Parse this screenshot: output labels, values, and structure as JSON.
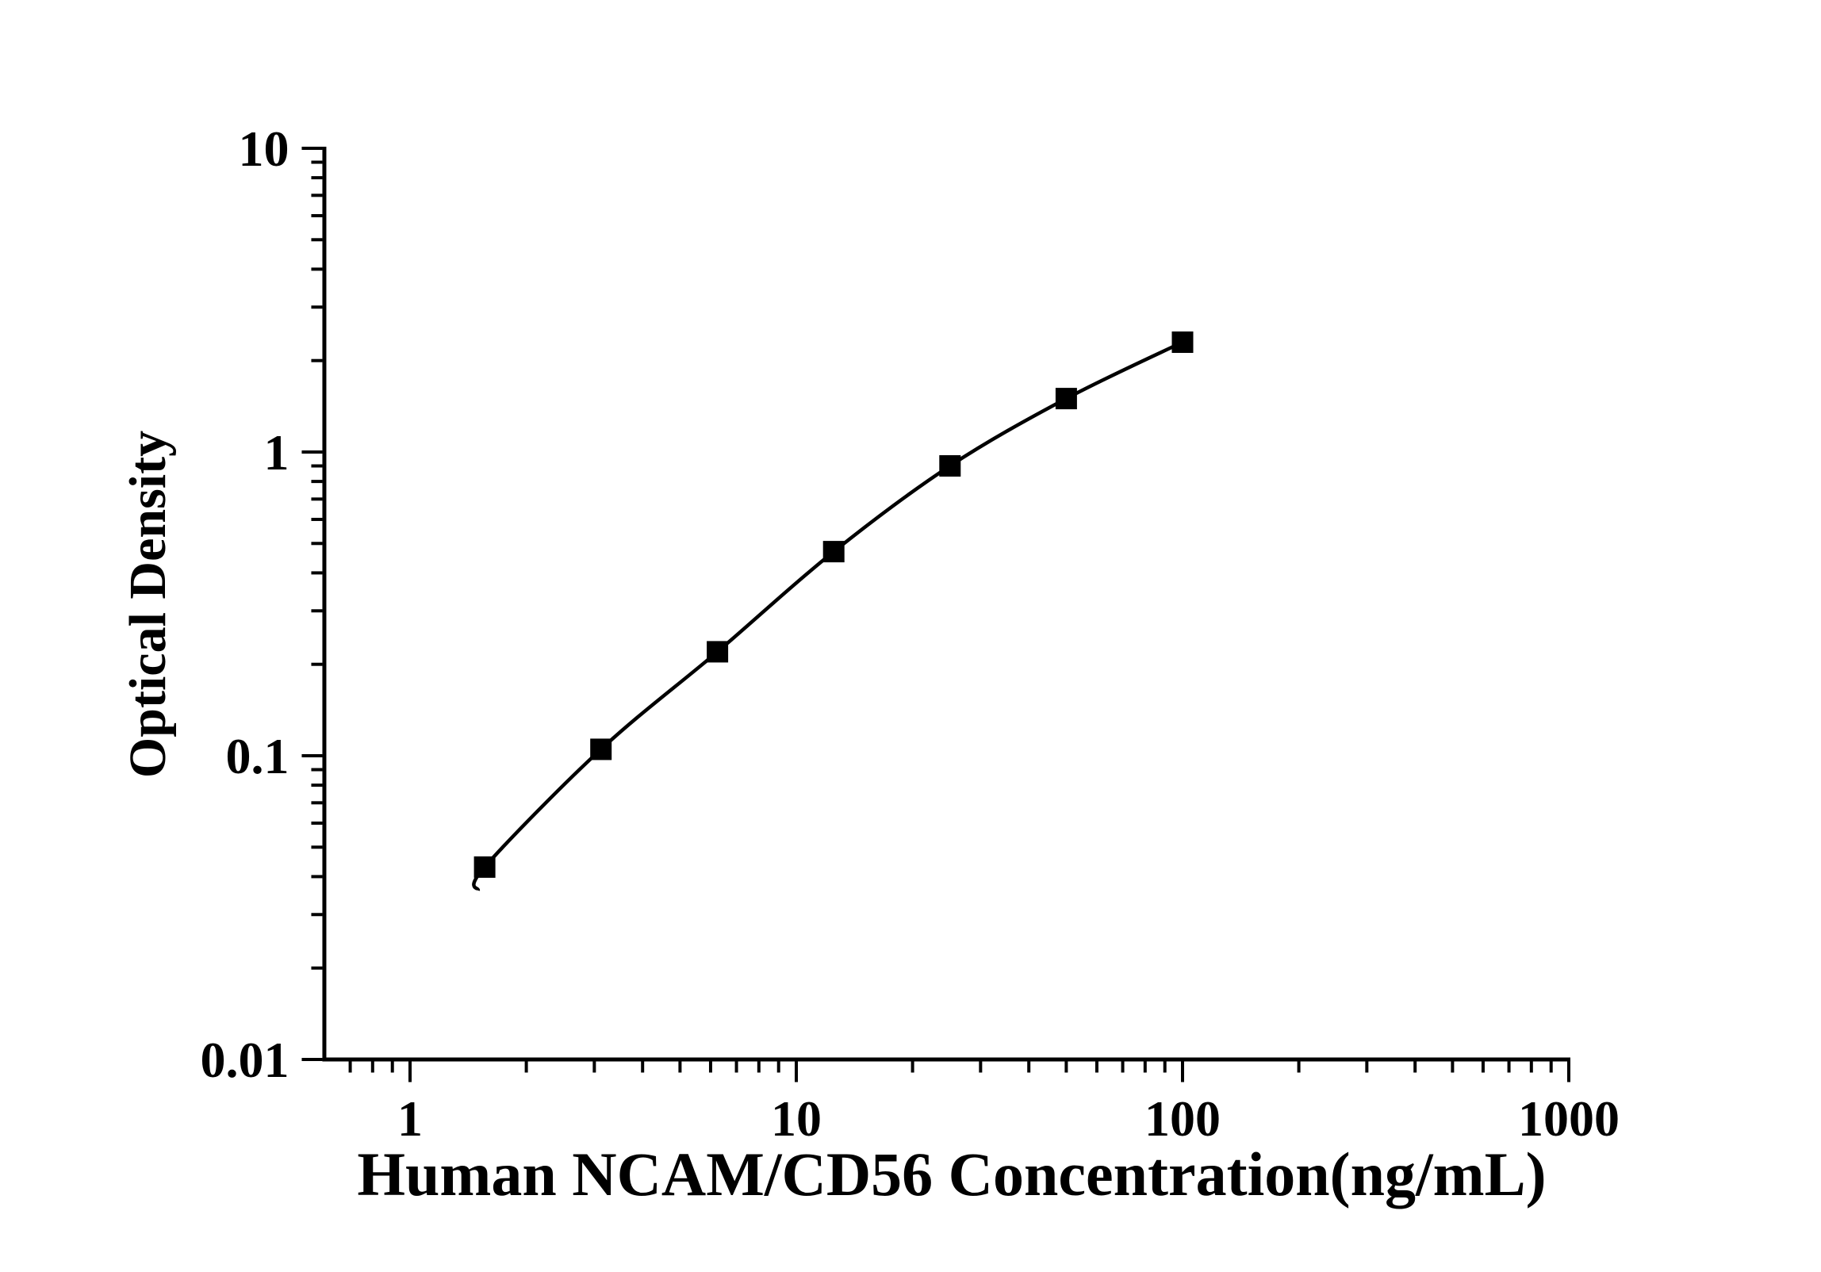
{
  "chart_data": {
    "type": "line",
    "subtype": "scatter-line-standard-curve",
    "title": "",
    "xlabel": "Human NCAM/CD56 Concentration(ng/mL)",
    "ylabel": "Optical Density",
    "x_scale": "log10",
    "y_scale": "log10",
    "xlim": [
      0.6,
      1000
    ],
    "ylim": [
      0.01,
      10
    ],
    "grid": false,
    "legend": false,
    "x_major_ticks": [
      1,
      10,
      100,
      1000
    ],
    "x_tick_labels": [
      "1",
      "10",
      "100",
      "1000"
    ],
    "x_minor_ticks": [
      0.7,
      0.8,
      0.9,
      2,
      3,
      4,
      5,
      6,
      7,
      8,
      9,
      20,
      30,
      40,
      50,
      60,
      70,
      80,
      90,
      200,
      300,
      400,
      500,
      600,
      700,
      800,
      900
    ],
    "y_major_ticks": [
      0.01,
      0.1,
      1,
      10
    ],
    "y_tick_labels": [
      "0.01",
      "0.1",
      "1",
      "10"
    ],
    "y_minor_ticks": [
      0.02,
      0.03,
      0.04,
      0.05,
      0.06,
      0.07,
      0.08,
      0.09,
      0.2,
      0.3,
      0.4,
      0.5,
      0.6,
      0.7,
      0.8,
      0.9,
      2,
      3,
      4,
      5,
      6,
      7,
      8,
      9
    ],
    "series": [
      {
        "x": [
          1.56,
          3.12,
          6.25,
          12.5,
          25,
          50,
          100
        ],
        "y": [
          0.043,
          0.105,
          0.22,
          0.47,
          0.9,
          1.5,
          2.3
        ],
        "marker": "filled-square",
        "marker_color": "#000000",
        "line_color": "#000000",
        "curve_tail_start": {
          "x": 1.5,
          "y": 0.036
        }
      }
    ],
    "colors": {
      "axis": "#000000",
      "text": "#000000",
      "background": "#ffffff"
    }
  }
}
